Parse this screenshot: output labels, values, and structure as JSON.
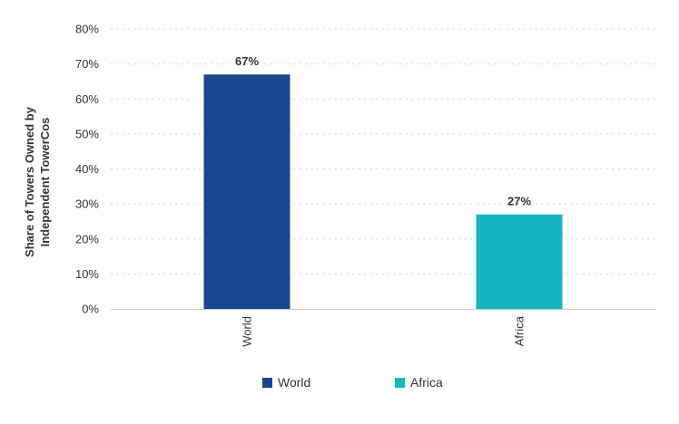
{
  "chart_data": {
    "type": "bar",
    "categories": [
      "World",
      "Africa"
    ],
    "values": [
      67,
      27
    ],
    "value_labels": [
      "67%",
      "27%"
    ],
    "colors": [
      "#17478e",
      "#14b5c0"
    ],
    "ylabel_lines": [
      "Share of Towers Owned by",
      "Independent TowerCos"
    ],
    "xlabel": "",
    "ylim": [
      0,
      80
    ],
    "yticks": [
      0,
      10,
      20,
      30,
      40,
      50,
      60,
      70,
      80
    ],
    "ytick_labels": [
      "0%",
      "10%",
      "20%",
      "30%",
      "40%",
      "50%",
      "60%",
      "70%",
      "80%"
    ],
    "grid": true,
    "legend": {
      "position": "bottom",
      "entries": [
        {
          "label": "World",
          "color": "#17478e"
        },
        {
          "label": "Africa",
          "color": "#14b5c0"
        }
      ]
    }
  }
}
